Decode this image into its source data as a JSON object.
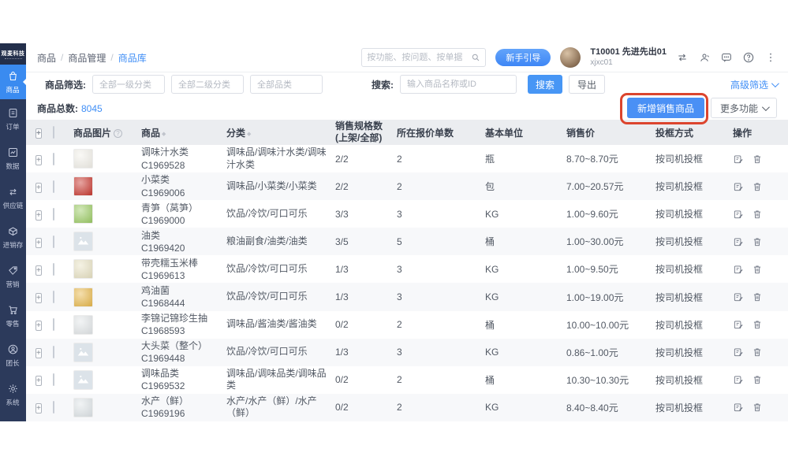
{
  "colors": {
    "accent_blue": "#3f8ef6",
    "sidebar_bg": "#2c3a5b",
    "sidebar_active": "#3a8bf0",
    "table_header_bg": "#ebedf0",
    "annotation_red": "#dc452e"
  },
  "sidebar": {
    "logo": "观麦科技",
    "items": [
      {
        "label": "商品",
        "icon": "bag-icon",
        "active": true
      },
      {
        "label": "订单",
        "icon": "order-icon",
        "active": false
      },
      {
        "label": "数据",
        "icon": "chart-icon",
        "active": false
      },
      {
        "label": "供应链",
        "icon": "supply-chain-icon",
        "active": false
      },
      {
        "label": "进销存",
        "icon": "inventory-icon",
        "active": false
      },
      {
        "label": "营销",
        "icon": "tag-icon",
        "active": false
      },
      {
        "label": "零售",
        "icon": "cart-icon",
        "active": false
      },
      {
        "label": "团长",
        "icon": "person-icon",
        "active": false
      },
      {
        "label": "系统",
        "icon": "gear-icon",
        "active": false
      }
    ]
  },
  "header": {
    "breadcrumb": [
      "商品",
      "商品管理",
      "商品库"
    ],
    "search_placeholder": "按功能、按问题、按单据",
    "guide_button": "新手引导",
    "user_id": "T10001 先进先出01",
    "user_account": "xjxc01"
  },
  "filters": {
    "label": "商品筛选:",
    "selects": [
      "全部一级分类",
      "全部二级分类",
      "全部品类"
    ],
    "search_label": "搜索:",
    "search_placeholder": "输入商品名称或ID",
    "search_button": "搜索",
    "export_button": "导出",
    "advanced_filter": "高级筛选"
  },
  "toolbar": {
    "total_label": "商品总数:",
    "total_value": "8045",
    "add_button": "新增销售商品",
    "more_button": "更多功能"
  },
  "table": {
    "columns": {
      "image": "商品图片",
      "product": "商品",
      "category": "分类",
      "spec_line1": "销售规格数",
      "spec_line2": "(上架/全部)",
      "quotes": "所在报价单数",
      "unit": "基本单位",
      "price": "销售价",
      "basket": "投框方式",
      "op": "操作"
    },
    "rows": [
      {
        "name": "调味汁水类",
        "code": "C1969528",
        "category": "调味品/调味汁水类/调味汁水类",
        "spec": "2/2",
        "quotes": "2",
        "unit": "瓶",
        "price": "8.70~8.70元",
        "basket": "按司机投框",
        "thumb": "photo",
        "thumb_color": "#f3f1ea"
      },
      {
        "name": "小菜类",
        "code": "C1969006",
        "category": "调味品/小菜类/小菜类",
        "spec": "2/2",
        "quotes": "2",
        "unit": "包",
        "price": "7.00~20.57元",
        "basket": "按司机投框",
        "thumb": "photo",
        "thumb_color": "#c8372f"
      },
      {
        "name": "青笋（莴笋）",
        "code": "C1969000",
        "category": "饮品/冷饮/可口可乐",
        "spec": "3/3",
        "quotes": "3",
        "unit": "KG",
        "price": "1.00~9.60元",
        "basket": "按司机投框",
        "thumb": "photo",
        "thumb_color": "#9ccc65"
      },
      {
        "name": "油类",
        "code": "C1969420",
        "category": "粮油副食/油类/油类",
        "spec": "3/5",
        "quotes": "5",
        "unit": "桶",
        "price": "1.00~30.00元",
        "basket": "按司机投框",
        "thumb": "placeholder",
        "thumb_color": "#dce3e9"
      },
      {
        "name": "带壳糯玉米棒",
        "code": "C1969613",
        "category": "饮品/冷饮/可口可乐",
        "spec": "1/3",
        "quotes": "3",
        "unit": "KG",
        "price": "1.00~9.50元",
        "basket": "按司机投框",
        "thumb": "photo",
        "thumb_color": "#e9e3c4"
      },
      {
        "name": "鸡油菌",
        "code": "C1968444",
        "category": "饮品/冷饮/可口可乐",
        "spec": "1/3",
        "quotes": "3",
        "unit": "KG",
        "price": "1.00~19.00元",
        "basket": "按司机投框",
        "thumb": "photo",
        "thumb_color": "#e8b84b"
      },
      {
        "name": "李锦记锦珍生抽",
        "code": "C1968593",
        "category": "调味品/酱油类/酱油类",
        "spec": "0/2",
        "quotes": "2",
        "unit": "桶",
        "price": "10.00~10.00元",
        "basket": "按司机投框",
        "thumb": "photo",
        "thumb_color": "#e3e7e9"
      },
      {
        "name": "大头菜（整个）",
        "code": "C1969448",
        "category": "饮品/冷饮/可口可乐",
        "spec": "1/3",
        "quotes": "3",
        "unit": "KG",
        "price": "0.86~1.00元",
        "basket": "按司机投框",
        "thumb": "placeholder",
        "thumb_color": "#dce3e9"
      },
      {
        "name": "调味品类",
        "code": "C1969532",
        "category": "调味品/调味品类/调味品类",
        "spec": "0/2",
        "quotes": "2",
        "unit": "桶",
        "price": "10.30~10.30元",
        "basket": "按司机投框",
        "thumb": "placeholder",
        "thumb_color": "#dce3e9"
      },
      {
        "name": "水产（鲜）",
        "code": "C1969196",
        "category": "水产/水产（鲜）/水产（鲜）",
        "spec": "0/2",
        "quotes": "2",
        "unit": "KG",
        "price": "8.40~8.40元",
        "basket": "按司机投框",
        "thumb": "photo",
        "thumb_color": "#dfe5e8"
      }
    ]
  }
}
